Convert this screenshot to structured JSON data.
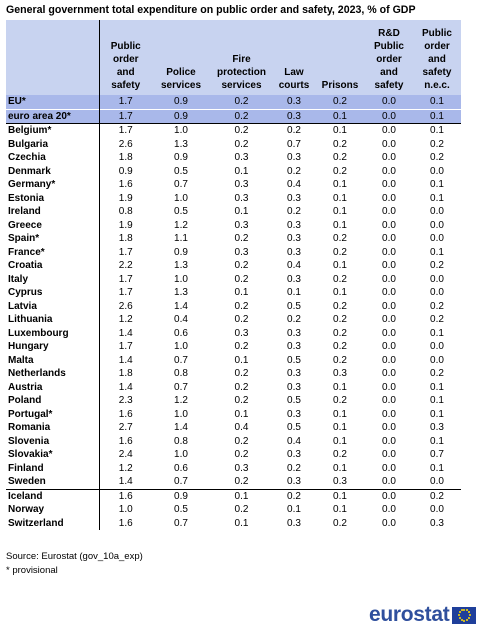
{
  "title": "General government total expenditure on public order and safety, 2023, % of GDP",
  "headers": {
    "total": [
      "Public",
      "order",
      "and",
      "safety"
    ],
    "police": [
      "Police",
      "services"
    ],
    "fire": [
      "Fire",
      "protection",
      "services"
    ],
    "law": [
      "Law",
      "courts"
    ],
    "prisons": [
      "Prisons"
    ],
    "rd": [
      "R&D",
      "Public",
      "order",
      "and",
      "safety"
    ],
    "nec": [
      "Public",
      "order",
      "and",
      "safety",
      "n.e.c."
    ]
  },
  "rows": [
    {
      "country": "EU*",
      "values": [
        "1.7",
        "0.9",
        "0.2",
        "0.3",
        "0.2",
        "0.0",
        "0.1"
      ]
    },
    {
      "country": "euro area 20*",
      "values": [
        "1.7",
        "0.9",
        "0.2",
        "0.3",
        "0.1",
        "0.0",
        "0.1"
      ]
    },
    {
      "country": "Belgium*",
      "values": [
        "1.7",
        "1.0",
        "0.2",
        "0.2",
        "0.1",
        "0.0",
        "0.1"
      ]
    },
    {
      "country": "Bulgaria",
      "values": [
        "2.6",
        "1.3",
        "0.2",
        "0.7",
        "0.2",
        "0.0",
        "0.2"
      ]
    },
    {
      "country": "Czechia",
      "values": [
        "1.8",
        "0.9",
        "0.3",
        "0.3",
        "0.2",
        "0.0",
        "0.2"
      ]
    },
    {
      "country": "Denmark",
      "values": [
        "0.9",
        "0.5",
        "0.1",
        "0.2",
        "0.2",
        "0.0",
        "0.0"
      ]
    },
    {
      "country": "Germany*",
      "values": [
        "1.6",
        "0.7",
        "0.3",
        "0.4",
        "0.1",
        "0.0",
        "0.1"
      ]
    },
    {
      "country": "Estonia",
      "values": [
        "1.9",
        "1.0",
        "0.3",
        "0.3",
        "0.1",
        "0.0",
        "0.1"
      ]
    },
    {
      "country": "Ireland",
      "values": [
        "0.8",
        "0.5",
        "0.1",
        "0.2",
        "0.1",
        "0.0",
        "0.0"
      ]
    },
    {
      "country": "Greece",
      "values": [
        "1.9",
        "1.2",
        "0.3",
        "0.3",
        "0.1",
        "0.0",
        "0.0"
      ]
    },
    {
      "country": "Spain*",
      "values": [
        "1.8",
        "1.1",
        "0.2",
        "0.3",
        "0.2",
        "0.0",
        "0.0"
      ]
    },
    {
      "country": "France*",
      "values": [
        "1.7",
        "0.9",
        "0.3",
        "0.3",
        "0.2",
        "0.0",
        "0.1"
      ]
    },
    {
      "country": "Croatia",
      "values": [
        "2.2",
        "1.3",
        "0.2",
        "0.4",
        "0.1",
        "0.0",
        "0.2"
      ]
    },
    {
      "country": "Italy",
      "values": [
        "1.7",
        "1.0",
        "0.2",
        "0.3",
        "0.2",
        "0.0",
        "0.0"
      ]
    },
    {
      "country": "Cyprus",
      "values": [
        "1.7",
        "1.3",
        "0.1",
        "0.1",
        "0.1",
        "0.0",
        "0.0"
      ]
    },
    {
      "country": "Latvia",
      "values": [
        "2.6",
        "1.4",
        "0.2",
        "0.5",
        "0.2",
        "0.0",
        "0.2"
      ]
    },
    {
      "country": "Lithuania",
      "values": [
        "1.2",
        "0.4",
        "0.2",
        "0.2",
        "0.2",
        "0.0",
        "0.2"
      ]
    },
    {
      "country": "Luxembourg",
      "values": [
        "1.4",
        "0.6",
        "0.3",
        "0.3",
        "0.2",
        "0.0",
        "0.1"
      ]
    },
    {
      "country": "Hungary",
      "values": [
        "1.7",
        "1.0",
        "0.2",
        "0.3",
        "0.2",
        "0.0",
        "0.0"
      ]
    },
    {
      "country": "Malta",
      "values": [
        "1.4",
        "0.7",
        "0.1",
        "0.5",
        "0.2",
        "0.0",
        "0.0"
      ]
    },
    {
      "country": "Netherlands",
      "values": [
        "1.8",
        "0.8",
        "0.2",
        "0.3",
        "0.3",
        "0.0",
        "0.2"
      ]
    },
    {
      "country": "Austria",
      "values": [
        "1.4",
        "0.7",
        "0.2",
        "0.3",
        "0.1",
        "0.0",
        "0.1"
      ]
    },
    {
      "country": "Poland",
      "values": [
        "2.3",
        "1.2",
        "0.2",
        "0.5",
        "0.2",
        "0.0",
        "0.1"
      ]
    },
    {
      "country": "Portugal*",
      "values": [
        "1.6",
        "1.0",
        "0.1",
        "0.3",
        "0.1",
        "0.0",
        "0.1"
      ]
    },
    {
      "country": "Romania",
      "values": [
        "2.7",
        "1.4",
        "0.4",
        "0.5",
        "0.1",
        "0.0",
        "0.3"
      ]
    },
    {
      "country": "Slovenia",
      "values": [
        "1.6",
        "0.8",
        "0.2",
        "0.4",
        "0.1",
        "0.0",
        "0.1"
      ]
    },
    {
      "country": "Slovakia*",
      "values": [
        "2.4",
        "1.0",
        "0.2",
        "0.3",
        "0.2",
        "0.0",
        "0.7"
      ]
    },
    {
      "country": "Finland",
      "values": [
        "1.2",
        "0.6",
        "0.3",
        "0.2",
        "0.1",
        "0.0",
        "0.1"
      ]
    },
    {
      "country": "Sweden",
      "values": [
        "1.4",
        "0.7",
        "0.2",
        "0.3",
        "0.3",
        "0.0",
        "0.0"
      ]
    },
    {
      "country": "Iceland",
      "values": [
        "1.6",
        "0.9",
        "0.1",
        "0.2",
        "0.1",
        "0.0",
        "0.2"
      ]
    },
    {
      "country": "Norway",
      "values": [
        "1.0",
        "0.5",
        "0.2",
        "0.1",
        "0.1",
        "0.0",
        "0.0"
      ]
    },
    {
      "country": "Switzerland",
      "values": [
        "1.6",
        "0.7",
        "0.1",
        "0.3",
        "0.2",
        "0.0",
        "0.3"
      ]
    }
  ],
  "source": "Source: Eurostat (gov_10a_exp)",
  "footnote": "* provisional",
  "logo": {
    "text": "eurostat",
    "color": "#2f4f9d"
  },
  "colors": {
    "header_bg": "#c8d3f0",
    "aggregate_bg": "#a9b8ea"
  }
}
